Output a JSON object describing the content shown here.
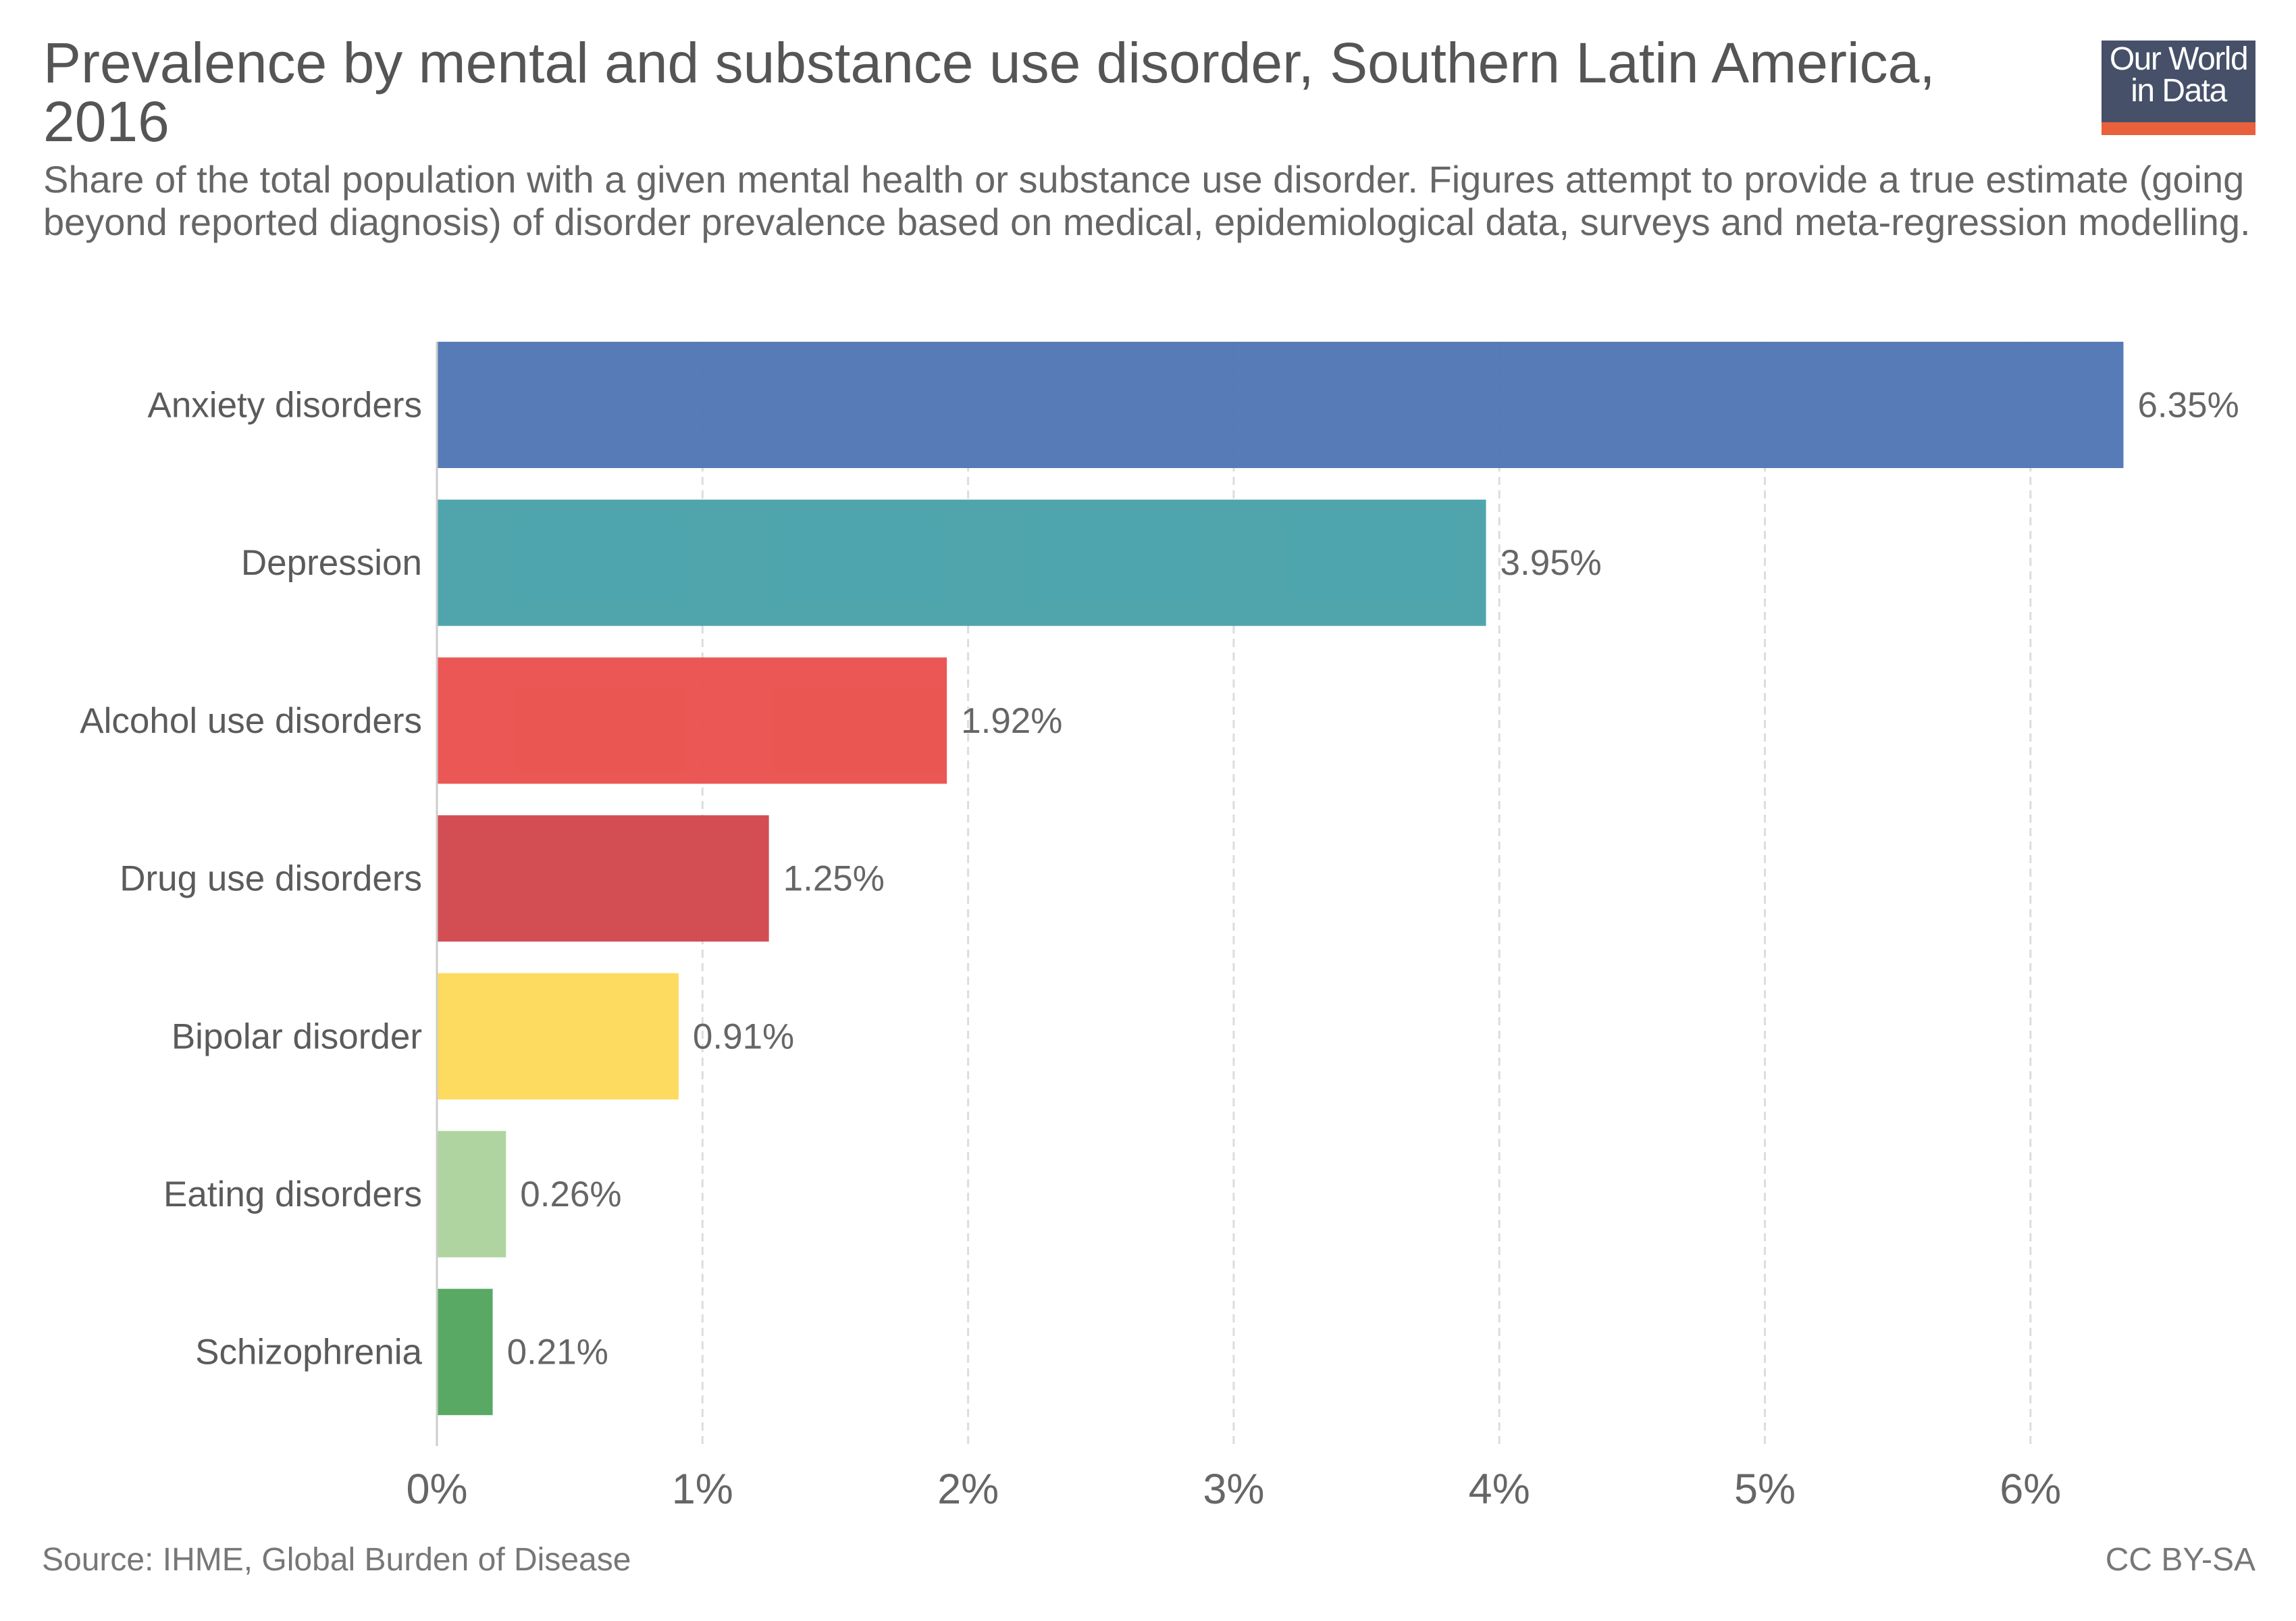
{
  "header": {
    "title": "Prevalence by mental and substance use disorder, Southern Latin America, 2016",
    "subtitle": "Share of the total population with a given mental health or substance use disorder. Figures attempt to provide a true estimate (going beyond reported diagnosis) of disorder prevalence based on medical, epidemiological data, surveys and meta-regression modelling.",
    "logo_line1": "Our World",
    "logo_line2": "in Data"
  },
  "footer": {
    "source": "Source: IHME, Global Burden of Disease",
    "license": "CC BY-SA"
  },
  "chart_data": {
    "type": "bar",
    "orientation": "horizontal",
    "title": "Prevalence by mental and substance use disorder, Southern Latin America, 2016",
    "subtitle": "Share of the total population with a given mental health or substance use disorder. Figures attempt to provide a true estimate (going beyond reported diagnosis) of disorder prevalence based on medical, epidemiological data, surveys and meta-regression modelling.",
    "xlabel": "",
    "ylabel": "",
    "unit": "%",
    "xlim": [
      0,
      6.35
    ],
    "xticks": [
      0,
      1,
      2,
      3,
      4,
      5,
      6
    ],
    "xtick_labels": [
      "0%",
      "1%",
      "2%",
      "3%",
      "4%",
      "5%",
      "6%"
    ],
    "grid": "vertical dashed",
    "legend": "none",
    "categories": [
      "Anxiety disorders",
      "Depression",
      "Alcohol use disorders",
      "Drug use disorders",
      "Bipolar disorder",
      "Eating disorders",
      "Schizophrenia"
    ],
    "values": [
      6.35,
      3.95,
      1.92,
      1.25,
      0.91,
      0.26,
      0.21
    ],
    "value_labels": [
      "6.35%",
      "3.95%",
      "1.92%",
      "1.25%",
      "0.91%",
      "0.26%",
      "0.21%"
    ],
    "colors": [
      "#5177B4",
      "#4AA2AA",
      "#E9524E",
      "#D2484D",
      "#FDDA5C",
      "#ADD39C",
      "#54A660"
    ]
  },
  "colors": {
    "logo_background": "#465068",
    "logo_accent": "#E8603C",
    "text": "#555555"
  }
}
